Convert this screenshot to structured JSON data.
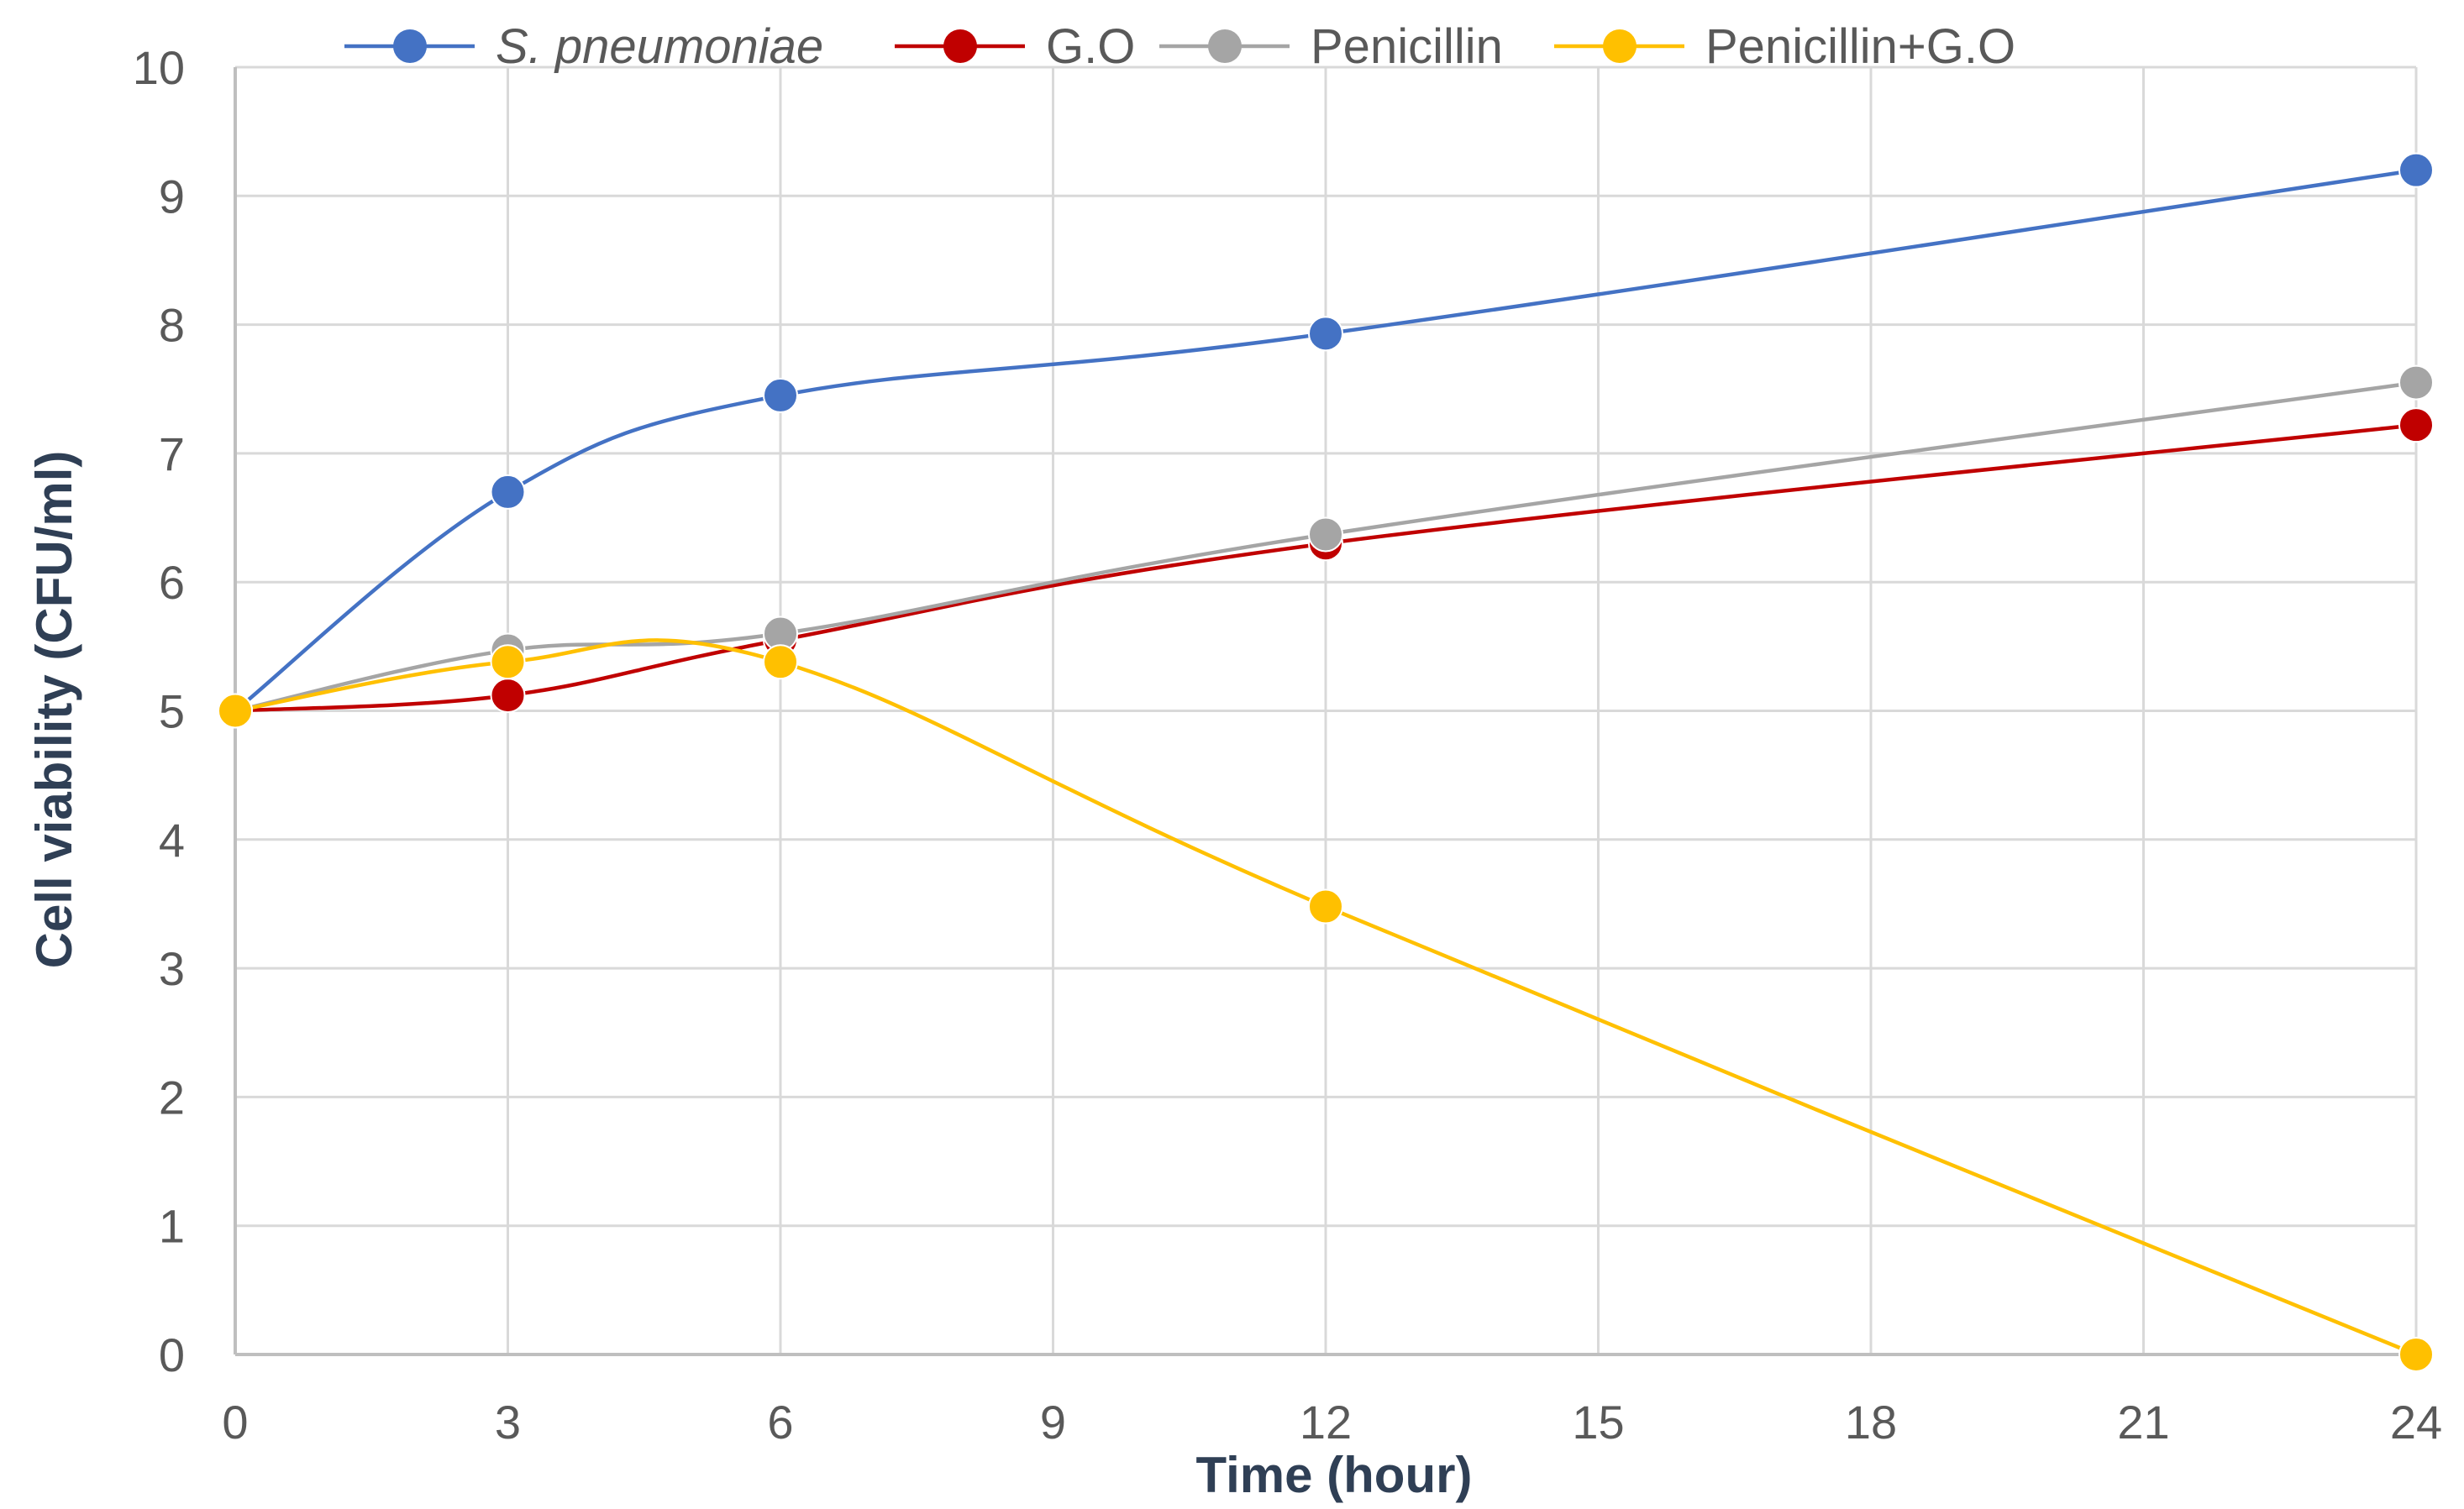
{
  "chart_data": {
    "type": "line",
    "title": "",
    "xlabel": "Time (hour)",
    "ylabel": "Cell viability (CFU/ml)",
    "xlim": [
      0,
      24
    ],
    "ylim": [
      0,
      10
    ],
    "xticks": [
      "0",
      "3",
      "6",
      "9",
      "12",
      "15",
      "18",
      "21",
      "24"
    ],
    "yticks": [
      "0",
      "1",
      "2",
      "3",
      "4",
      "5",
      "6",
      "7",
      "8",
      "9",
      "10"
    ],
    "grid": true,
    "legend_position": "top",
    "x": [
      0,
      3,
      6,
      12,
      24
    ],
    "series": [
      {
        "name": "S. pneumoniae",
        "color": "#4472c4",
        "values": [
          5.0,
          6.7,
          7.45,
          7.93,
          9.2
        ]
      },
      {
        "name": "G.O",
        "color": "#c00000",
        "values": [
          5.0,
          5.12,
          5.55,
          6.3,
          7.22
        ]
      },
      {
        "name": "Penicillin",
        "color": "#a5a5a5",
        "values": [
          5.0,
          5.47,
          5.6,
          6.37,
          7.55
        ]
      },
      {
        "name": "Penicillin+G.O",
        "color": "#ffc000",
        "values": [
          5.0,
          5.38,
          5.38,
          3.48,
          0.0
        ]
      }
    ]
  }
}
